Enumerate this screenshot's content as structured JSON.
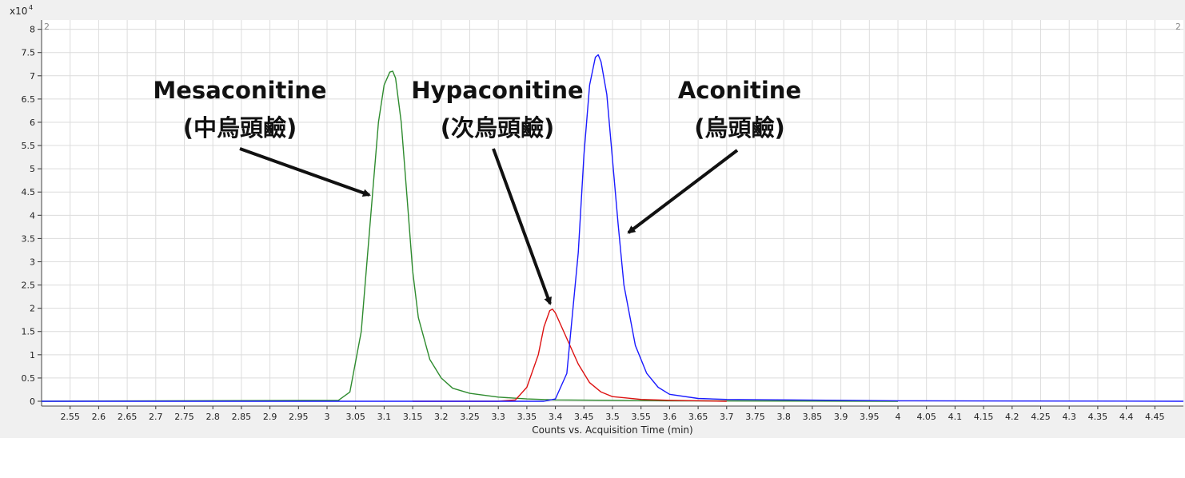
{
  "chart_data": {
    "type": "line",
    "xlabel": "Counts vs. Acquisition Time (min)",
    "ylabel": "",
    "y_multiplier_label": "x10",
    "y_multiplier_exp": "4",
    "xlim": [
      2.5,
      4.5
    ],
    "ylim": [
      0,
      8.2
    ],
    "x_ticks": [
      "2.55",
      "2.6",
      "2.65",
      "2.7",
      "2.75",
      "2.8",
      "2.85",
      "2.9",
      "2.95",
      "3",
      "3.05",
      "3.1",
      "3.15",
      "3.2",
      "3.25",
      "3.3",
      "3.35",
      "3.4",
      "3.45",
      "3.5",
      "3.55",
      "3.6",
      "3.65",
      "3.7",
      "3.75",
      "3.8",
      "3.85",
      "3.9",
      "3.95",
      "4",
      "4.05",
      "4.1",
      "4.15",
      "4.2",
      "4.25",
      "4.3",
      "4.35",
      "4.4",
      "4.45"
    ],
    "y_ticks": [
      "0",
      "0.5",
      "1",
      "1.5",
      "2",
      "2.5",
      "3",
      "3.5",
      "4",
      "4.5",
      "5",
      "5.5",
      "6",
      "6.5",
      "7",
      "7.5",
      "8"
    ],
    "corner_labels": [
      "2",
      "2"
    ],
    "grid": true,
    "series": [
      {
        "color": "#2e8b2e",
        "x": [
          2.5,
          3.02,
          3.04,
          3.06,
          3.08,
          3.09,
          3.1,
          3.11,
          3.115,
          3.12,
          3.13,
          3.14,
          3.15,
          3.16,
          3.18,
          3.2,
          3.22,
          3.25,
          3.3,
          3.35,
          3.4,
          3.6,
          4.0
        ],
        "y": [
          0,
          0.02,
          0.2,
          1.5,
          4.5,
          6.0,
          6.8,
          7.08,
          7.1,
          6.95,
          6.0,
          4.4,
          2.8,
          1.8,
          0.9,
          0.5,
          0.28,
          0.17,
          0.09,
          0.05,
          0.03,
          0.01,
          0
        ]
      },
      {
        "color": "#dd1111",
        "x": [
          3.15,
          3.3,
          3.33,
          3.35,
          3.37,
          3.38,
          3.39,
          3.395,
          3.4,
          3.42,
          3.44,
          3.46,
          3.48,
          3.5,
          3.55,
          3.6,
          3.7
        ],
        "y": [
          0,
          0,
          0.03,
          0.3,
          1.0,
          1.6,
          1.95,
          1.98,
          1.9,
          1.35,
          0.8,
          0.4,
          0.2,
          0.1,
          0.04,
          0.02,
          0
        ]
      },
      {
        "color": "#1a1aff",
        "x": [
          2.5,
          3.38,
          3.4,
          3.42,
          3.44,
          3.45,
          3.46,
          3.47,
          3.475,
          3.48,
          3.49,
          3.5,
          3.51,
          3.52,
          3.54,
          3.56,
          3.58,
          3.6,
          3.65,
          3.7,
          3.9,
          4.0,
          4.5
        ],
        "y": [
          0,
          0,
          0.05,
          0.6,
          3.2,
          5.3,
          6.8,
          7.4,
          7.45,
          7.3,
          6.6,
          5.2,
          3.8,
          2.5,
          1.2,
          0.6,
          0.3,
          0.15,
          0.06,
          0.04,
          0.02,
          0.01,
          0
        ]
      }
    ],
    "annotations": [
      {
        "line1": "Mesaconitine",
        "line2": "(中烏頭鹼)"
      },
      {
        "line1": "Hypaconitine",
        "line2": "(次烏頭鹼)"
      },
      {
        "line1": "Aconitine",
        "line2": "(烏頭鹼)"
      }
    ]
  }
}
